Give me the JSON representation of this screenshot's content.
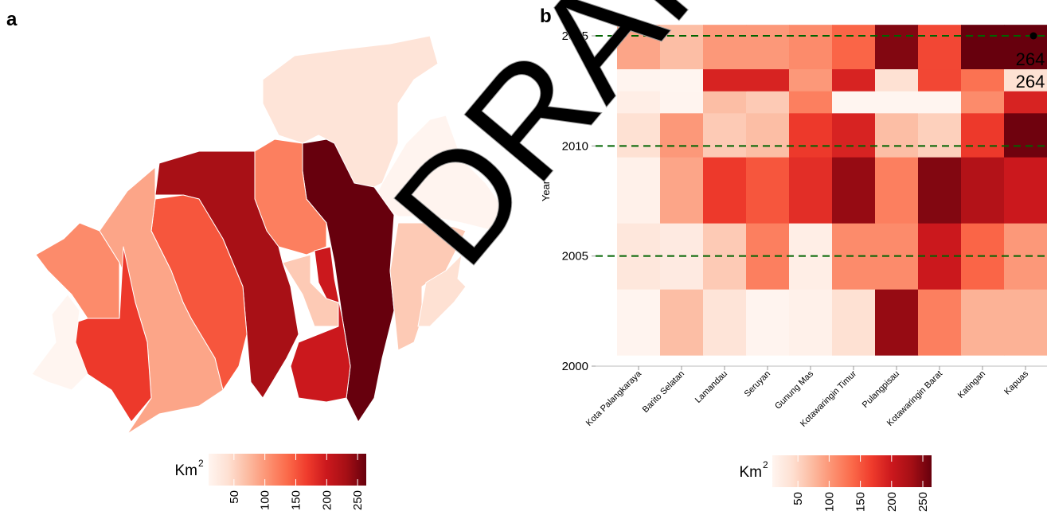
{
  "chart_data": [
    {
      "type": "map",
      "panel": "a",
      "values": [
        35,
        10,
        264,
        120,
        230,
        150,
        90,
        110,
        170,
        5,
        60,
        200,
        60,
        40
      ],
      "palette": [
        "#fff5f0",
        "#fee0d2",
        "#fcbba1",
        "#fc9272",
        "#fb6a4a",
        "#ef3b2c",
        "#cb181d",
        "#a50f15",
        "#67000d"
      ],
      "colorlim": [
        9,
        264
      ],
      "legend_ticks": [
        50,
        100,
        150,
        200,
        250
      ],
      "legend_title": "Km",
      "legend_title_sup": "2"
    },
    {
      "type": "heatmap",
      "panel": "b",
      "categories": [
        "Kota Palangkaraya",
        "Barito Selatan",
        "Lamandau",
        "Seruyan",
        "Gunung Mas",
        "Kotawaringin Timur",
        "Pulangpisau",
        "Kotawaringin Barat",
        "Katingan",
        "Kapuas"
      ],
      "row_edges": [
        2000.5,
        2003.5,
        2006.5,
        2009.5,
        2011.5,
        2012.5,
        2013.5,
        2015.5
      ],
      "values": [
        [
          10,
          70,
          35,
          10,
          15,
          40,
          240,
          120,
          80,
          80
        ],
        [
          30,
          25,
          60,
          120,
          20,
          110,
          110,
          200,
          140,
          100
        ],
        [
          15,
          90,
          170,
          150,
          180,
          240,
          120,
          250,
          220,
          200
        ],
        [
          40,
          100,
          60,
          70,
          170,
          190,
          70,
          55,
          170,
          260
        ],
        [
          20,
          10,
          70,
          60,
          120,
          5,
          5,
          5,
          110,
          190
        ],
        [
          10,
          5,
          190,
          190,
          100,
          190,
          40,
          160,
          130,
          40
        ],
        [
          90,
          70,
          100,
          100,
          110,
          140,
          250,
          160,
          264,
          264
        ]
      ],
      "ylabel": "Year",
      "ylim": [
        2000,
        2015.47
      ],
      "yticks": [
        2000,
        2005,
        2010,
        2015
      ],
      "gridlines": [
        2005,
        2010,
        2015
      ],
      "grid_color": "#006400",
      "point": {
        "category": "Kapuas",
        "year": 2015
      },
      "annotations": [
        "264",
        "264"
      ],
      "palette": [
        "#fff5f0",
        "#fee0d2",
        "#fcbba1",
        "#fc9272",
        "#fb6a4a",
        "#ef3b2c",
        "#cb181d",
        "#a50f15",
        "#67000d"
      ],
      "colorlim": [
        9,
        264
      ],
      "legend_ticks": [
        50,
        100,
        150,
        200,
        250
      ],
      "legend_title": "Km",
      "legend_title_sup": "2",
      "watermark": "DRAFT"
    }
  ]
}
